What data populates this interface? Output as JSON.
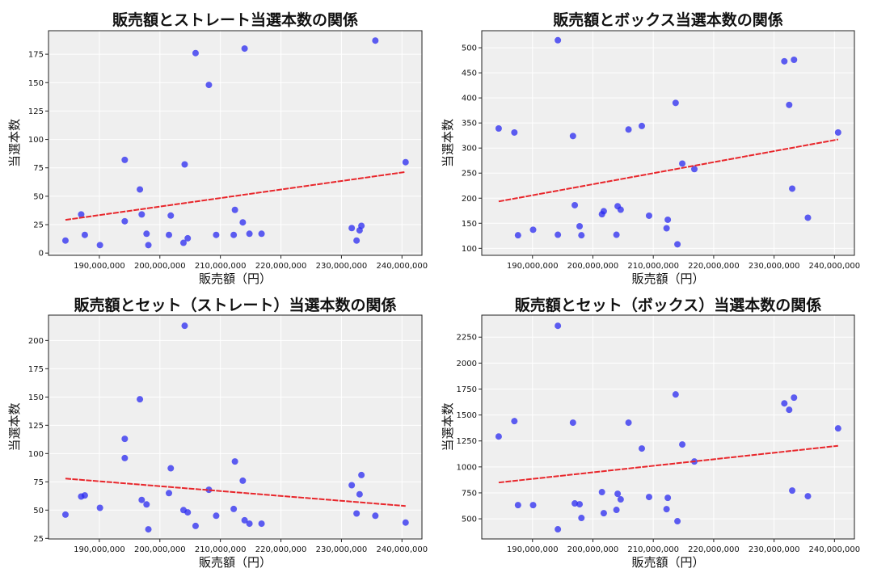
{
  "colors": {
    "point": "#2a2af0",
    "trend": "#e8262b",
    "plot_bg": "#efefef",
    "grid": "#ffffff"
  },
  "chart_data": [
    {
      "type": "scatter",
      "title": "販売額とストレート当選本数の関係",
      "xlabel": "販売額（円）",
      "ylabel": "当選本数",
      "xlim": [
        181600000,
        243300000
      ],
      "ylim": [
        -2,
        195.7
      ],
      "xticks": [
        190000000,
        200000000,
        210000000,
        220000000,
        230000000,
        240000000
      ],
      "xtick_labels": [
        "190,000,000",
        "200,000,000",
        "210,000,000",
        "220,000,000",
        "230,000,000",
        "240,000,000"
      ],
      "yticks": [
        0,
        25,
        50,
        75,
        100,
        125,
        150,
        175
      ],
      "ytick_labels": [
        "0",
        "25",
        "50",
        "75",
        "100",
        "125",
        "150",
        "175"
      ],
      "grid": true,
      "trendline": "linear",
      "x": [
        184400000,
        187000000,
        187600000,
        190100000,
        194200000,
        194200000,
        196700000,
        197000000,
        197800000,
        198100000,
        201500000,
        201800000,
        203900000,
        204100000,
        204600000,
        205900000,
        208100000,
        209300000,
        212200000,
        212400000,
        213700000,
        214000000,
        214800000,
        216800000,
        231700000,
        232500000,
        233000000,
        233300000,
        235600000,
        240600000
      ],
      "y": [
        11,
        34,
        16,
        7,
        82,
        28,
        56,
        34,
        17,
        7,
        16,
        33,
        9,
        78,
        13,
        176,
        148,
        16,
        16,
        38,
        27,
        180,
        17,
        17,
        22,
        11,
        20,
        24,
        187,
        80
      ]
    },
    {
      "type": "scatter",
      "title": "販売額とボックス当選本数の関係",
      "xlabel": "販売額（円）",
      "ylabel": "当選本数",
      "xlim": [
        181600000,
        243300000
      ],
      "ylim": [
        86,
        534
      ],
      "xticks": [
        190000000,
        200000000,
        210000000,
        220000000,
        230000000,
        240000000
      ],
      "xtick_labels": [
        "190,000,000",
        "200,000,000",
        "210,000,000",
        "220,000,000",
        "230,000,000",
        "240,000,000"
      ],
      "yticks": [
        100,
        150,
        200,
        250,
        300,
        350,
        400,
        450,
        500
      ],
      "ytick_labels": [
        "100",
        "150",
        "200",
        "250",
        "300",
        "350",
        "400",
        "450",
        "500"
      ],
      "grid": true,
      "trendline": "linear",
      "x": [
        184400000,
        187000000,
        187600000,
        190100000,
        194200000,
        194200000,
        196700000,
        197000000,
        197800000,
        198100000,
        201500000,
        201800000,
        203900000,
        204100000,
        204600000,
        205900000,
        208100000,
        209300000,
        212200000,
        212400000,
        213700000,
        214000000,
        214800000,
        216800000,
        231700000,
        232500000,
        233000000,
        233300000,
        235600000,
        240600000
      ],
      "y": [
        339,
        331,
        126,
        137,
        515,
        127,
        324,
        186,
        144,
        126,
        168,
        174,
        127,
        184,
        177,
        337,
        344,
        165,
        140,
        157,
        390,
        108,
        269,
        258,
        473,
        386,
        219,
        476,
        161,
        331
      ]
    },
    {
      "type": "scatter",
      "title": "販売額とセット（ストレート）当選本数の関係",
      "xlabel": "販売額（円）",
      "ylabel": "当選本数",
      "xlim": [
        181600000,
        243300000
      ],
      "ylim": [
        24.5,
        222.4
      ],
      "xticks": [
        190000000,
        200000000,
        210000000,
        220000000,
        230000000,
        240000000
      ],
      "xtick_labels": [
        "190,000,000",
        "200,000,000",
        "210,000,000",
        "220,000,000",
        "230,000,000",
        "240,000,000"
      ],
      "yticks": [
        25,
        50,
        75,
        100,
        125,
        150,
        175,
        200
      ],
      "ytick_labels": [
        "25",
        "50",
        "75",
        "100",
        "125",
        "150",
        "175",
        "200"
      ],
      "grid": true,
      "trendline": "linear",
      "x": [
        184400000,
        187000000,
        187600000,
        190100000,
        194200000,
        194200000,
        196700000,
        197000000,
        197800000,
        198100000,
        201500000,
        201800000,
        203900000,
        204100000,
        204600000,
        205900000,
        208100000,
        209300000,
        212200000,
        212400000,
        213700000,
        214000000,
        214800000,
        216800000,
        231700000,
        232500000,
        233000000,
        233300000,
        235600000,
        240600000
      ],
      "y": [
        46,
        62,
        63,
        52,
        113,
        96,
        148,
        59,
        55,
        33,
        65,
        87,
        50,
        213,
        48,
        36,
        68,
        45,
        51,
        93,
        76,
        41,
        38,
        38,
        72,
        47,
        64,
        81,
        45,
        39
      ]
    },
    {
      "type": "scatter",
      "title": "販売額とセット（ボックス）当選本数の関係",
      "xlabel": "販売額（円）",
      "ylabel": "当選本数",
      "xlim": [
        181600000,
        243300000
      ],
      "ylim": [
        306,
        2462
      ],
      "xticks": [
        190000000,
        200000000,
        210000000,
        220000000,
        230000000,
        240000000
      ],
      "xtick_labels": [
        "190,000,000",
        "200,000,000",
        "210,000,000",
        "220,000,000",
        "230,000,000",
        "240,000,000"
      ],
      "yticks": [
        500,
        750,
        1000,
        1250,
        1500,
        1750,
        2000,
        2250
      ],
      "ytick_labels": [
        "500",
        "750",
        "1000",
        "1250",
        "1500",
        "1750",
        "2000",
        "2250"
      ],
      "grid": true,
      "trendline": "linear",
      "x": [
        184400000,
        187000000,
        187600000,
        190100000,
        194200000,
        194200000,
        196700000,
        197000000,
        197800000,
        198100000,
        201500000,
        201800000,
        203900000,
        204100000,
        204600000,
        205900000,
        208100000,
        209300000,
        212200000,
        212400000,
        213700000,
        214000000,
        214800000,
        216800000,
        231700000,
        232500000,
        233000000,
        233300000,
        235600000,
        240600000
      ],
      "y": [
        1293,
        1441,
        632,
        632,
        2359,
        399,
        1426,
        648,
        640,
        508,
        757,
        554,
        586,
        741,
        687,
        1426,
        1177,
        710,
        593,
        702,
        1698,
        477,
        1216,
        1052,
        1612,
        1550,
        772,
        1667,
        718,
        1371
      ]
    }
  ]
}
